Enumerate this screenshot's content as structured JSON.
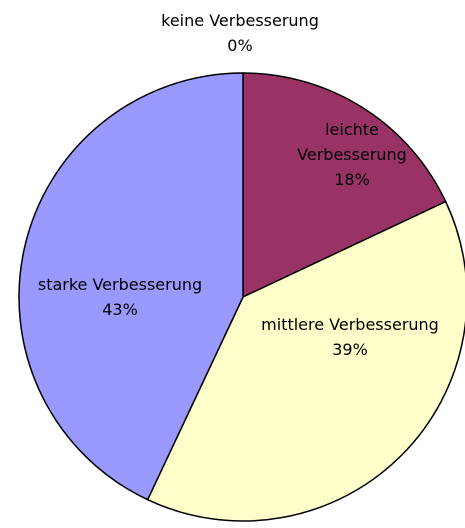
{
  "chart_data": {
    "type": "pie",
    "categories": [
      "keine Verbesserung",
      "leichte Verbesserung",
      "mittlere Verbesserung",
      "starke Verbesserung"
    ],
    "values": [
      0,
      18,
      39,
      43
    ],
    "value_labels": [
      "0%",
      "18%",
      "39%",
      "43%"
    ],
    "colors": [
      "#ccffff",
      "#993366",
      "#ffffcc",
      "#9999ff"
    ]
  }
}
